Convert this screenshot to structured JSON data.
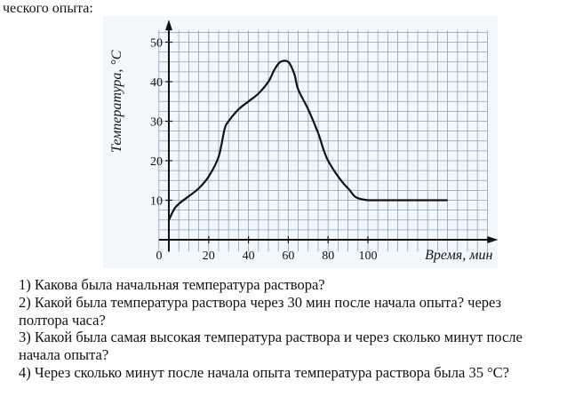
{
  "header_fragment": "ческого опыта:",
  "chart_data": {
    "type": "line",
    "title": "",
    "xlabel": "Время, мин",
    "ylabel": "Температура, °С",
    "origin_label": "0",
    "x_ticks": [
      20,
      40,
      60,
      80,
      100
    ],
    "y_ticks": [
      10,
      20,
      30,
      40,
      50
    ],
    "xlim": [
      -5,
      160
    ],
    "ylim": [
      -3,
      53
    ],
    "grid": true,
    "series": [
      {
        "x": [
          0,
          3,
          6,
          10,
          15,
          20,
          25,
          28,
          30,
          35,
          40,
          45,
          50,
          53,
          56,
          60,
          63,
          65,
          70,
          75,
          80,
          90,
          100,
          140
        ],
        "y": [
          5,
          8,
          9.5,
          11,
          13,
          16,
          21,
          28,
          30,
          33,
          35,
          37,
          40,
          43,
          45,
          45,
          42,
          38,
          33,
          27,
          20,
          13,
          10,
          10
        ]
      }
    ]
  },
  "questions": [
    "1) Какова была начальная температура раствора?",
    "2) Какой была температура раствора через 30 мин после начала опыта? через полтора часа?",
    "3) Какой была самая высокая температура раствора и через сколько минут после начала опыта?",
    "4) Через сколько минут после начала опыта температура раствора была 35 °С?"
  ]
}
